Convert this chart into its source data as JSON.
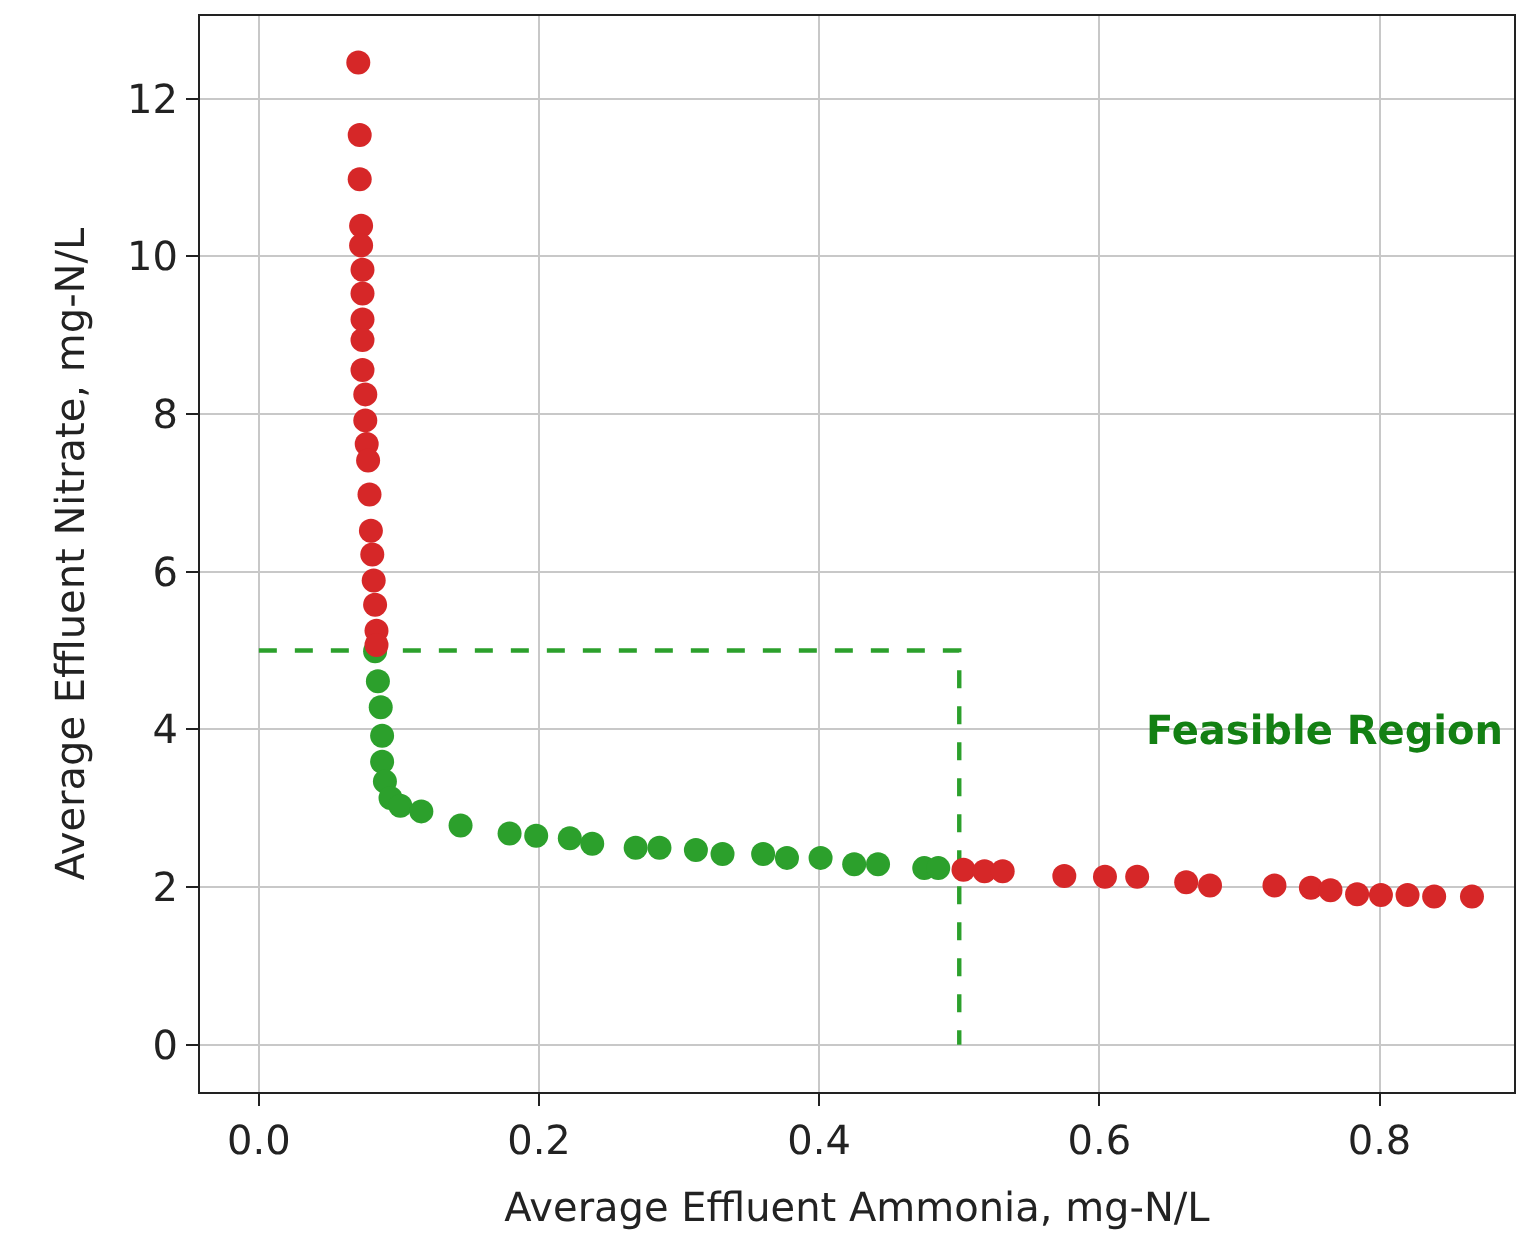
{
  "chart_data": {
    "type": "scatter",
    "xlabel": "Average Effluent Ammonia, mg-N/L",
    "ylabel": "Average Effluent Nitrate, mg-N/L",
    "xlim": [
      -0.042,
      0.896
    ],
    "xticks": [
      {
        "value": 0,
        "label": "0.0"
      },
      0.2,
      0.4,
      0.6,
      0.8
    ],
    "ylim": [
      -0.6,
      13.05
    ],
    "yticks": [
      0,
      2,
      4,
      6,
      8,
      10,
      12
    ],
    "grid": true,
    "marker": "circle",
    "series": [
      {
        "color": "#d62728",
        "x": [
          0.071,
          0.072,
          0.072,
          0.073,
          0.073,
          0.074,
          0.074,
          0.074,
          0.074,
          0.074,
          0.076,
          0.076,
          0.077,
          0.078,
          0.079,
          0.08,
          0.081,
          0.082,
          0.083,
          0.084,
          0.084
        ],
        "values": [
          12.46,
          11.54,
          10.98,
          10.39,
          10.14,
          9.83,
          9.53,
          9.2,
          8.94,
          8.56,
          8.25,
          7.92,
          7.62,
          7.41,
          6.98,
          6.52,
          6.22,
          5.89,
          5.58,
          5.25,
          5.07
        ]
      },
      {
        "color": "#2ca02c",
        "marker": "circle",
        "x": [
          0.083,
          0.085,
          0.087,
          0.088,
          0.088,
          0.09,
          0.094,
          0.101,
          0.116,
          0.144,
          0.179,
          0.198,
          0.222,
          0.238,
          0.269,
          0.286,
          0.312,
          0.331,
          0.36,
          0.377,
          0.401,
          0.425,
          0.442,
          0.475,
          0.485
        ],
        "values": [
          4.99,
          4.61,
          4.28,
          3.92,
          3.59,
          3.34,
          3.13,
          3.03,
          2.96,
          2.78,
          2.68,
          2.65,
          2.62,
          2.55,
          2.5,
          2.5,
          2.47,
          2.42,
          2.42,
          2.37,
          2.37,
          2.29,
          2.29,
          2.24,
          2.24
        ]
      },
      {
        "color": "#d62728",
        "x": [
          0.503,
          0.518,
          0.531,
          0.575,
          0.604,
          0.627,
          0.662,
          0.679,
          0.725,
          0.751,
          0.765,
          0.784,
          0.801,
          0.82,
          0.839,
          0.866
        ],
        "values": [
          2.22,
          2.2,
          2.2,
          2.14,
          2.13,
          2.13,
          2.06,
          2.02,
          2.02,
          1.99,
          1.96,
          1.91,
          1.9,
          1.9,
          1.88,
          1.88
        ]
      },
      {
        "type": "line",
        "color": "#2ca02c",
        "line_style": "dashed",
        "marker": "none",
        "x": [
          0,
          0.5,
          0.5
        ],
        "values": [
          5,
          5,
          0
        ]
      }
    ],
    "annotations": [
      "Feasible Region"
    ]
  }
}
